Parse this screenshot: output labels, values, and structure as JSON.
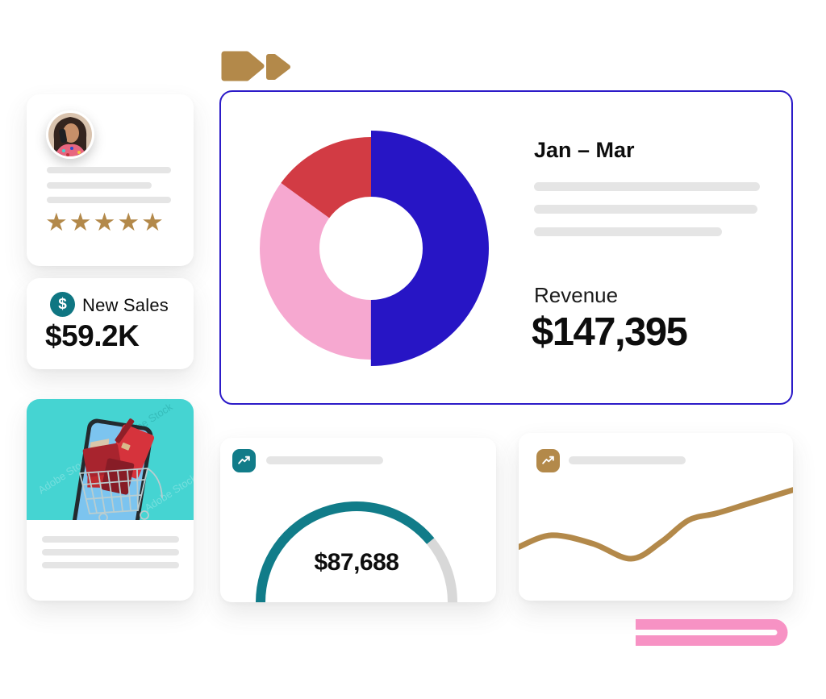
{
  "decor": {
    "arrows_color": "#b3894a",
    "pink_ribbon_color": "#f792c4"
  },
  "review_card": {
    "stars": "★★★★★",
    "star_color": "#b3894a",
    "placeholder_lines": 3
  },
  "new_sales_card": {
    "icon_glyph": "$",
    "label": "New Sales",
    "value": "$59.2K",
    "icon_color": "#0f7682"
  },
  "product_card": {
    "watermark": "Adobe Stock",
    "image_bg": "#45d4d2",
    "placeholder_lines": 3
  },
  "chart_data": [
    {
      "type": "pie",
      "variant": "donut",
      "title": "Jan – Mar",
      "metric_label": "Revenue",
      "metric_value": "$147,395",
      "legend": "none",
      "series": [
        {
          "name": "segment-blue",
          "value": 50,
          "color": "#2715c5"
        },
        {
          "name": "segment-pink",
          "value": 35,
          "color": "#f6a8d0"
        },
        {
          "name": "segment-red",
          "value": 15,
          "color": "#d23b44"
        }
      ]
    },
    {
      "type": "pie",
      "variant": "half-gauge",
      "progress": 0.78,
      "value_label": "$87,688",
      "fill_color": "#117c89",
      "track_color": "#d8d8d8",
      "legend": "none"
    },
    {
      "type": "line",
      "variant": "smooth-sparkline",
      "color": "#b3894a",
      "x": [
        0,
        12,
        27,
        41,
        52,
        62,
        72,
        84,
        100
      ],
      "values": [
        32,
        39,
        34,
        25,
        35,
        48,
        52,
        58,
        66
      ],
      "axes": "none",
      "grid": false,
      "legend": "none"
    }
  ]
}
